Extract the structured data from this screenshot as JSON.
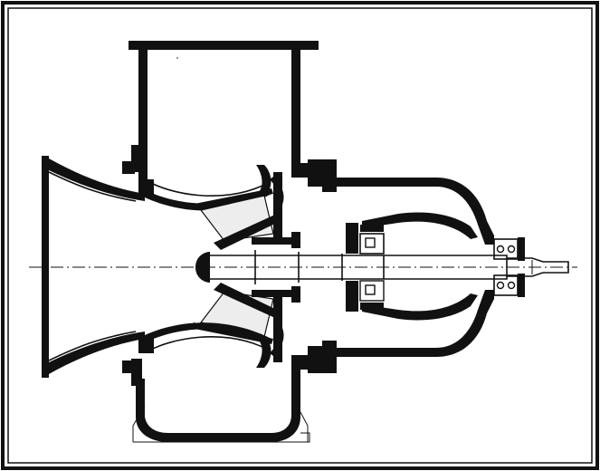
{
  "figure": {
    "kind": "pump cross-section drawing",
    "colors": {
      "background": "#ffffff",
      "ink": "#111111",
      "shade": "#e8e8e8"
    }
  }
}
